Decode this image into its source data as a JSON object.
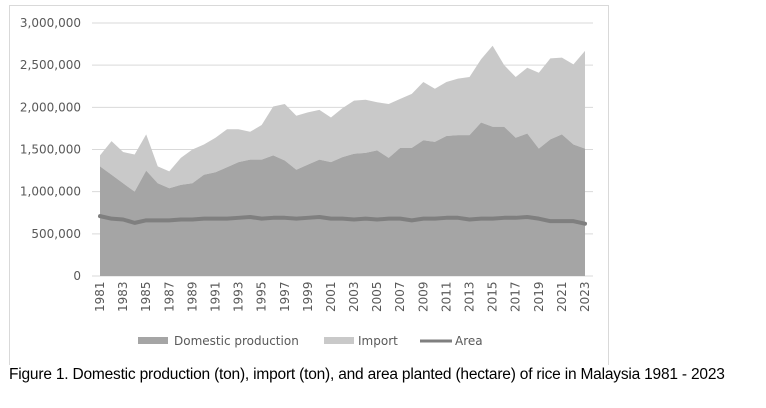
{
  "chart_data": {
    "type": "area",
    "stacked": true,
    "title": "",
    "xlabel": "",
    "ylabel": "",
    "ylim": [
      0,
      3000000
    ],
    "yticks": [
      0,
      500000,
      1000000,
      1500000,
      2000000,
      2500000,
      3000000
    ],
    "ytick_labels": [
      "0",
      "500,000",
      "1,000,000",
      "1,500,000",
      "2,000,000",
      "2,500,000",
      "3,000,000"
    ],
    "grid": "horizontal",
    "x": [
      1981,
      1982,
      1983,
      1984,
      1985,
      1986,
      1987,
      1988,
      1989,
      1990,
      1991,
      1992,
      1993,
      1994,
      1995,
      1996,
      1997,
      1998,
      1999,
      2000,
      2001,
      2002,
      2003,
      2004,
      2005,
      2006,
      2007,
      2008,
      2009,
      2010,
      2011,
      2012,
      2013,
      2014,
      2015,
      2016,
      2017,
      2018,
      2019,
      2020,
      2021,
      2022,
      2023
    ],
    "xtick_labels": [
      "1981",
      "1983",
      "1985",
      "1987",
      "1989",
      "1991",
      "1993",
      "1995",
      "1997",
      "1999",
      "2001",
      "2003",
      "2005",
      "2007",
      "2009",
      "2011",
      "2013",
      "2015",
      "2017",
      "2019",
      "2021",
      "2023"
    ],
    "series": [
      {
        "name": "Domestic production",
        "kind": "area",
        "color": "#a5a5a5",
        "values": [
          1300000,
          1200000,
          1100000,
          1000000,
          1250000,
          1100000,
          1040000,
          1080000,
          1100000,
          1200000,
          1230000,
          1290000,
          1350000,
          1380000,
          1380000,
          1430000,
          1370000,
          1260000,
          1320000,
          1380000,
          1350000,
          1410000,
          1450000,
          1460000,
          1490000,
          1400000,
          1520000,
          1520000,
          1610000,
          1590000,
          1660000,
          1670000,
          1670000,
          1820000,
          1770000,
          1770000,
          1640000,
          1690000,
          1510000,
          1620000,
          1680000,
          1560000,
          1510000
        ]
      },
      {
        "name": "Import",
        "kind": "area",
        "color": "#c9c9c9",
        "values": [
          130000,
          400000,
          370000,
          440000,
          430000,
          200000,
          200000,
          320000,
          400000,
          360000,
          410000,
          450000,
          390000,
          330000,
          410000,
          580000,
          670000,
          640000,
          620000,
          590000,
          530000,
          580000,
          630000,
          630000,
          570000,
          640000,
          580000,
          640000,
          690000,
          630000,
          640000,
          670000,
          690000,
          750000,
          960000,
          730000,
          720000,
          780000,
          900000,
          960000,
          910000,
          950000,
          1160000
        ]
      },
      {
        "name": "Area",
        "kind": "line",
        "color": "#7f7f7f",
        "values": [
          710000,
          680000,
          670000,
          630000,
          660000,
          660000,
          660000,
          670000,
          670000,
          680000,
          680000,
          680000,
          690000,
          700000,
          680000,
          690000,
          690000,
          680000,
          690000,
          700000,
          680000,
          680000,
          670000,
          680000,
          670000,
          680000,
          680000,
          660000,
          680000,
          680000,
          690000,
          690000,
          670000,
          680000,
          680000,
          690000,
          690000,
          700000,
          680000,
          650000,
          650000,
          650000,
          620000
        ]
      }
    ],
    "legend": "bottom"
  },
  "caption": "Figure 1. Domestic production (ton), import (ton), and area planted (hectare) of rice in Malaysia 1981 - 2023"
}
